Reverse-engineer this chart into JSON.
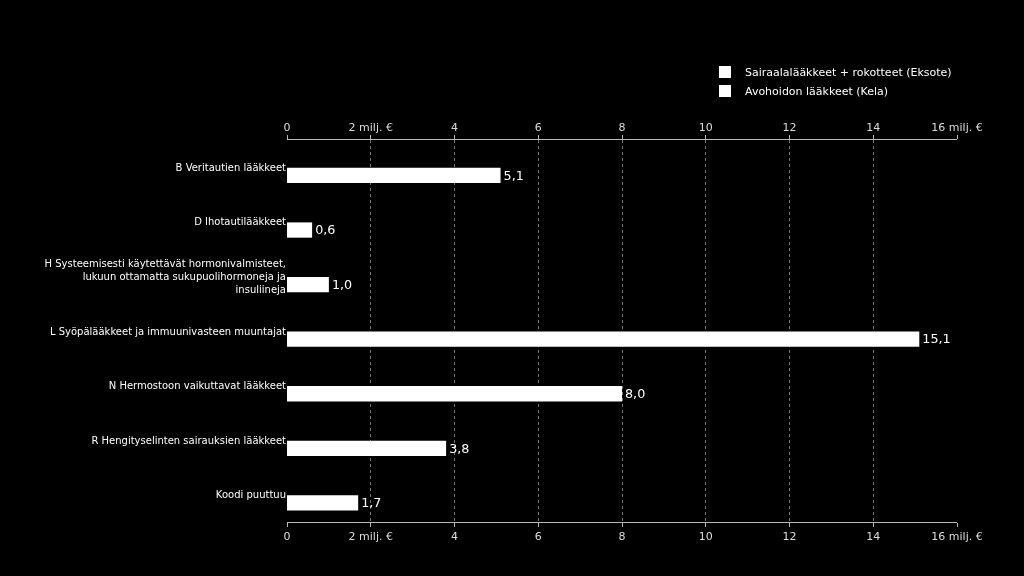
{
  "chart_data": {
    "type": "bar",
    "orientation": "horizontal",
    "categories": [
      "B Veritautien lääkkeet",
      "D Ihotautilääkkeet",
      "H Systeemisesti käytettävät hormonivalmisteet, lukuun ottamatta sukupuolihormoneja ja insuliineja",
      "L Syöpälääkkeet ja immuunivasteen muuntajat",
      "N Hermostoon vaikuttavat lääkkeet",
      "R Hengityselinten sairauksien lääkkeet",
      "Koodi puuttuu"
    ],
    "series": [
      {
        "name": "Sairaalalääkkeet + rokotteet (Eksote)",
        "color": "#ffffff",
        "values": [
          null,
          null,
          null,
          null,
          null,
          null,
          null
        ]
      },
      {
        "name": "Avohoidon lääkkeet (Kela)",
        "color": "#ffffff",
        "values": [
          5.1,
          0.6,
          1.0,
          15.1,
          8.0,
          3.8,
          1.7
        ],
        "value_labels": [
          "5,1",
          "0,6",
          "1,0",
          "15,1",
          "8,0",
          "3,8",
          "1,7"
        ]
      }
    ],
    "xlim": [
      0,
      16
    ],
    "xticks": [
      0,
      {
        "value": 2,
        "label": "2 milj. €"
      },
      4,
      6,
      8,
      10,
      12,
      14,
      {
        "value": 16,
        "label": "16 milj. €"
      }
    ],
    "x2lim": [
      0,
      16
    ],
    "x2ticks": [
      0,
      {
        "value": 2,
        "label": "2 milj. €"
      },
      4,
      6,
      8,
      10,
      12,
      14,
      {
        "value": 16,
        "label": "16 milj. €"
      }
    ],
    "grid": "x",
    "legend": "top right"
  }
}
